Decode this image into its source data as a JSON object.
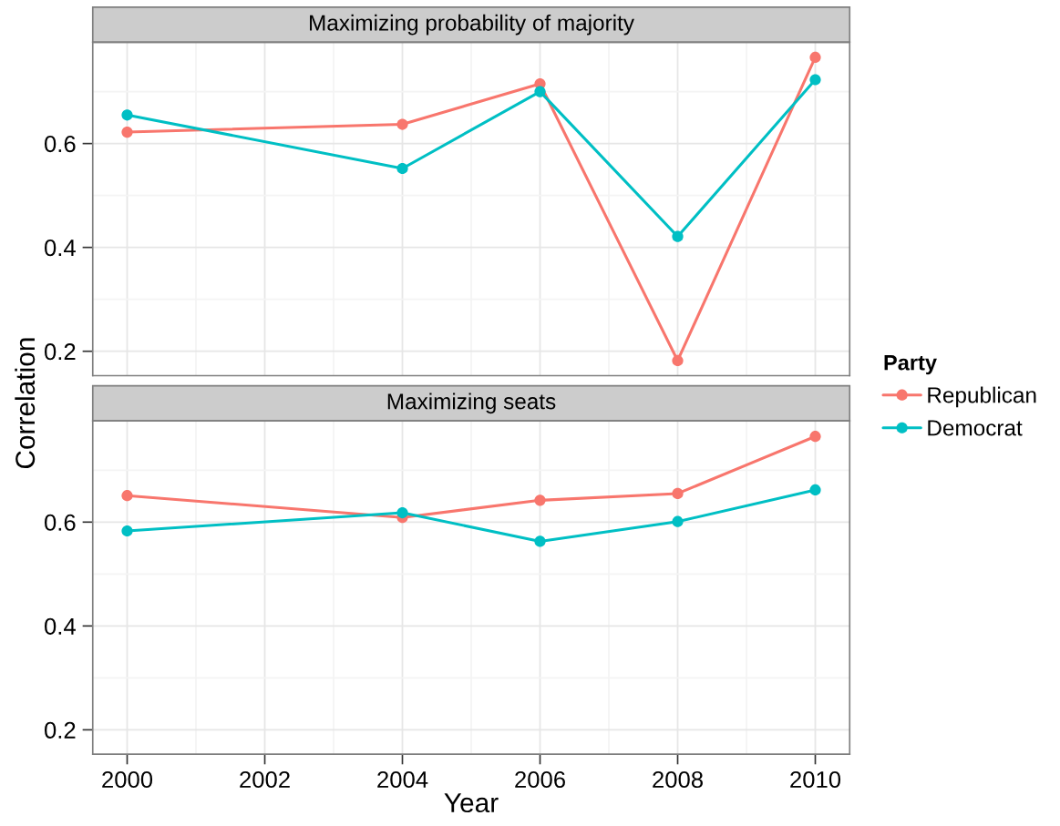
{
  "chart_data": [
    {
      "type": "line",
      "title": "Maximizing probability of majority",
      "ylabel": "Correlation",
      "legend_title": "Party",
      "legend": "right",
      "x": [
        2000,
        2004,
        2006,
        2008,
        2010
      ],
      "series": [
        {
          "name": "Republican",
          "color": "#f8766d",
          "values": [
            0.622,
            0.637,
            0.715,
            0.182,
            0.766
          ]
        },
        {
          "name": "Democrat",
          "color": "#00bfc4",
          "values": [
            0.655,
            0.552,
            0.7,
            0.421,
            0.723
          ]
        }
      ],
      "xlim": [
        1999.5,
        2010.5
      ],
      "xticks": [
        2000,
        2002,
        2004,
        2006,
        2008,
        2010
      ],
      "ylim": [
        0.153,
        0.795
      ],
      "yticks": [
        0.2,
        0.4,
        0.6
      ],
      "grid": true,
      "marker": "circle",
      "line_style": "solid",
      "tick_labels": "y"
    },
    {
      "type": "line",
      "title": "Maximizing seats",
      "xlabel": "Year",
      "x": [
        2000,
        2004,
        2006,
        2008,
        2010
      ],
      "series": [
        {
          "name": "Republican",
          "color": "#f8766d",
          "values": [
            0.651,
            0.609,
            0.642,
            0.655,
            0.765
          ]
        },
        {
          "name": "Democrat",
          "color": "#00bfc4",
          "values": [
            0.583,
            0.618,
            0.563,
            0.601,
            0.662
          ]
        }
      ],
      "xlim": [
        1999.5,
        2010.5
      ],
      "xticks": [
        2000,
        2002,
        2004,
        2006,
        2008,
        2010
      ],
      "ylim": [
        0.153,
        0.795
      ],
      "yticks": [
        0.2,
        0.4,
        0.6
      ],
      "grid": true,
      "marker": "circle",
      "line_style": "solid"
    }
  ]
}
